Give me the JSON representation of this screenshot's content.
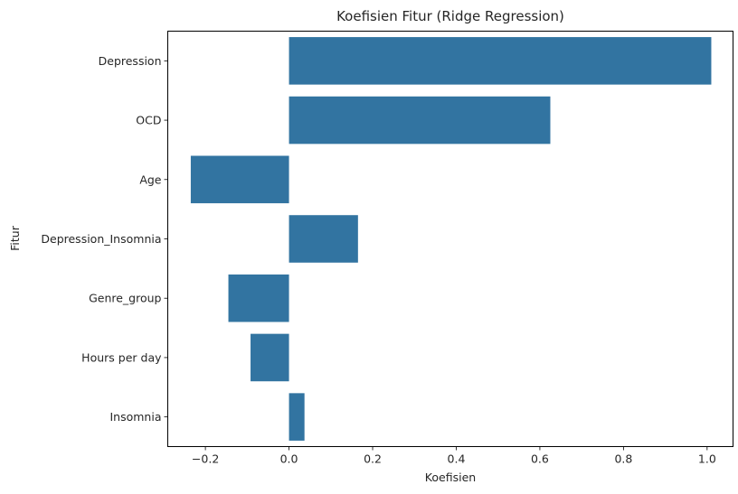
{
  "chart_data": {
    "type": "bar",
    "orientation": "horizontal",
    "title": "Koefisien Fitur (Ridge Regression)",
    "xlabel": "Koefisien",
    "ylabel": "Fitur",
    "categories": [
      "Depression",
      "OCD",
      "Age",
      "Depression_Insomnia",
      "Genre_group",
      "Hours per day",
      "Insomnia"
    ],
    "values": [
      1.01,
      0.625,
      -0.235,
      0.165,
      -0.145,
      -0.092,
      0.037
    ],
    "xlim": [
      -0.29,
      1.062
    ],
    "xticks": [
      -0.2,
      0.0,
      0.2,
      0.4,
      0.6,
      0.8,
      1.0
    ],
    "xtick_labels": [
      "−0.2",
      "0.0",
      "0.2",
      "0.4",
      "0.6",
      "0.8",
      "1.0"
    ],
    "bar_color": "#3274a1",
    "grid": false,
    "legend": "none"
  }
}
